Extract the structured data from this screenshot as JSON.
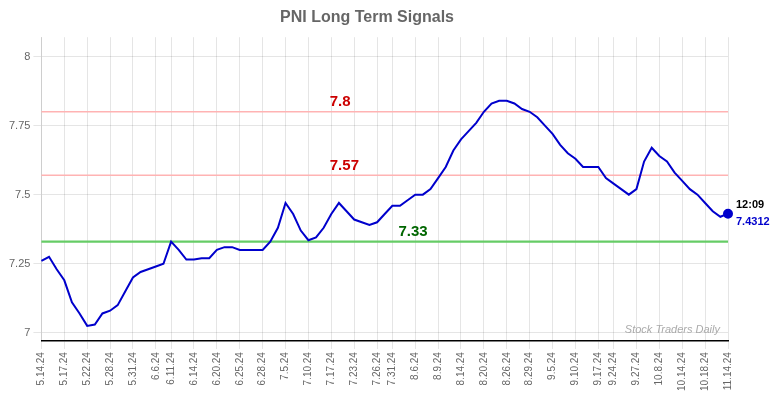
{
  "chart_data": {
    "type": "line",
    "title": "PNI Long Term Signals",
    "categories": [
      "5.14.24",
      null,
      null,
      "5.17.24",
      null,
      null,
      "5.22.24",
      null,
      null,
      "5.28.24",
      null,
      null,
      "5.31.24",
      null,
      null,
      "6.6.24",
      null,
      "6.11.24",
      null,
      null,
      "6.14.24",
      null,
      null,
      "6.20.24",
      null,
      null,
      "6.25.24",
      null,
      null,
      "6.28.24",
      null,
      null,
      "7.5.24",
      null,
      null,
      "7.10.24",
      null,
      null,
      "7.17.24",
      null,
      null,
      "7.23.24",
      null,
      null,
      "7.26.24",
      null,
      "7.31.24",
      null,
      null,
      "8.6.24",
      null,
      null,
      "8.9.24",
      null,
      null,
      "8.14.24",
      null,
      null,
      "8.20.24",
      null,
      null,
      "8.26.24",
      null,
      null,
      "8.29.24",
      null,
      null,
      "9.5.24",
      null,
      null,
      "9.10.24",
      null,
      null,
      "9.17.24",
      null,
      "9.24.24",
      null,
      null,
      "9.27.24",
      null,
      null,
      "10.8.24",
      null,
      null,
      "10.14.24",
      null,
      null,
      "10.18.24",
      null,
      null,
      "11.14.24"
    ],
    "values": [
      7.26,
      7.275,
      7.23,
      7.19,
      7.11,
      7.07,
      7.025,
      7.03,
      7.07,
      7.08,
      7.1,
      7.15,
      7.2,
      7.22,
      7.23,
      7.24,
      7.25,
      7.33,
      7.3,
      7.265,
      7.265,
      7.27,
      7.27,
      7.3,
      7.31,
      7.31,
      7.3,
      7.3,
      7.3,
      7.3,
      7.33,
      7.38,
      7.47,
      7.43,
      7.37,
      7.335,
      7.345,
      7.38,
      7.43,
      7.47,
      7.44,
      7.41,
      7.4,
      7.39,
      7.4,
      7.43,
      7.46,
      7.46,
      7.48,
      7.5,
      7.5,
      7.52,
      7.56,
      7.6,
      7.66,
      7.7,
      7.73,
      7.76,
      7.8,
      7.83,
      7.84,
      7.84,
      7.83,
      7.81,
      7.8,
      7.78,
      7.75,
      7.72,
      7.68,
      7.65,
      7.63,
      7.6,
      7.6,
      7.6,
      7.56,
      7.54,
      7.52,
      7.5,
      7.52,
      7.62,
      7.67,
      7.64,
      7.62,
      7.58,
      7.55,
      7.52,
      7.5,
      7.47,
      7.44,
      7.42,
      7.4312
    ],
    "color": "#0000cc",
    "ylim": [
      6.97,
      8.07
    ],
    "yticks": [
      7,
      7.25,
      7.5,
      7.75,
      8
    ],
    "grid": true,
    "reference_lines": [
      {
        "value": 7.8,
        "color": "#ffb3b3",
        "label": "7.8",
        "label_color": "#cc0000"
      },
      {
        "value": 7.57,
        "color": "#ffb3b3",
        "label": "7.57",
        "label_color": "#cc0000"
      },
      {
        "value": 7.33,
        "color": "#66cc66",
        "label": "7.33",
        "label_color": "#006600"
      }
    ],
    "end_labels": [
      {
        "text": "12:09",
        "color": "#000000"
      },
      {
        "text": "7.4312",
        "color": "#0000cc"
      }
    ],
    "watermark": {
      "text": "Stock Traders Daily",
      "color": "#aaaaaa"
    }
  }
}
